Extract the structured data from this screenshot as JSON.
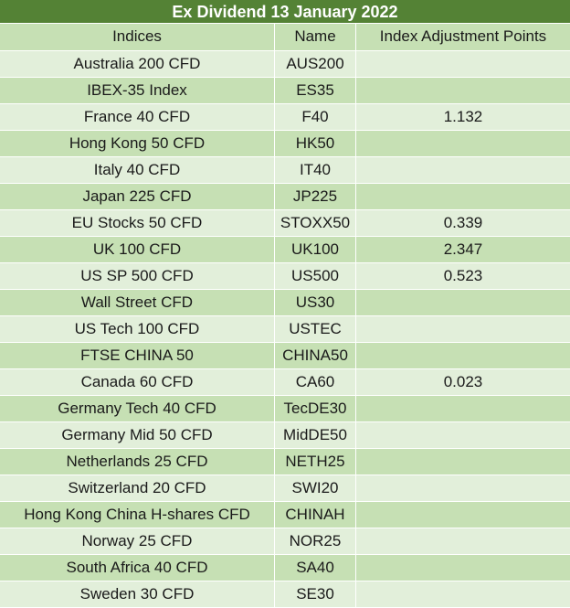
{
  "title": "Ex Dividend 13 January 2022",
  "columns": [
    "Indices",
    "Name",
    "Index Adjustment Points"
  ],
  "rows": [
    {
      "index": "Australia 200 CFD",
      "name": "AUS200",
      "points": ""
    },
    {
      "index": "IBEX-35 Index",
      "name": "ES35",
      "points": ""
    },
    {
      "index": "France 40 CFD",
      "name": "F40",
      "points": "1.132"
    },
    {
      "index": "Hong Kong 50 CFD",
      "name": "HK50",
      "points": ""
    },
    {
      "index": "Italy 40 CFD",
      "name": "IT40",
      "points": ""
    },
    {
      "index": "Japan 225 CFD",
      "name": "JP225",
      "points": ""
    },
    {
      "index": "EU Stocks 50 CFD",
      "name": "STOXX50",
      "points": "0.339"
    },
    {
      "index": "UK 100 CFD",
      "name": "UK100",
      "points": "2.347"
    },
    {
      "index": "US SP 500 CFD",
      "name": "US500",
      "points": "0.523"
    },
    {
      "index": "Wall Street CFD",
      "name": "US30",
      "points": ""
    },
    {
      "index": "US Tech 100 CFD",
      "name": "USTEC",
      "points": ""
    },
    {
      "index": "FTSE CHINA 50",
      "name": "CHINA50",
      "points": ""
    },
    {
      "index": "Canada 60 CFD",
      "name": "CA60",
      "points": "0.023"
    },
    {
      "index": "Germany Tech 40 CFD",
      "name": "TecDE30",
      "points": ""
    },
    {
      "index": "Germany Mid 50 CFD",
      "name": "MidDE50",
      "points": ""
    },
    {
      "index": "Netherlands 25 CFD",
      "name": "NETH25",
      "points": ""
    },
    {
      "index": "Switzerland 20 CFD",
      "name": "SWI20",
      "points": ""
    },
    {
      "index": "Hong Kong China H-shares CFD",
      "name": "CHINAH",
      "points": ""
    },
    {
      "index": "Norway 25 CFD",
      "name": "NOR25",
      "points": ""
    },
    {
      "index": "South Africa 40 CFD",
      "name": "SA40",
      "points": ""
    },
    {
      "index": "Sweden 30 CFD",
      "name": "SE30",
      "points": ""
    }
  ]
}
